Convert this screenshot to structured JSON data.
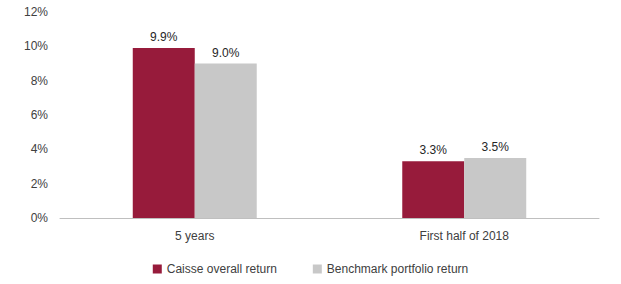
{
  "chart_data": {
    "type": "bar",
    "categories": [
      "5 years",
      "First half of 2018"
    ],
    "series": [
      {
        "name": "Caisse overall return",
        "color": "#971b3b",
        "values": [
          9.9,
          3.3
        ],
        "value_labels": [
          "9.9%",
          "3.3%"
        ]
      },
      {
        "name": "Benchmark portfolio return",
        "color": "#c8c8c8",
        "values": [
          9.0,
          3.5
        ],
        "value_labels": [
          "9.0%",
          "3.5%"
        ]
      }
    ],
    "ylim": [
      0,
      12
    ],
    "yticks": [
      {
        "value": 0,
        "label": "0%"
      },
      {
        "value": 2,
        "label": "2%"
      },
      {
        "value": 4,
        "label": "4%"
      },
      {
        "value": 6,
        "label": "6%"
      },
      {
        "value": 8,
        "label": "8%"
      },
      {
        "value": 10,
        "label": "10%"
      },
      {
        "value": 12,
        "label": "12%"
      }
    ],
    "grid": false,
    "legend": "bottom",
    "data_labels": true
  }
}
